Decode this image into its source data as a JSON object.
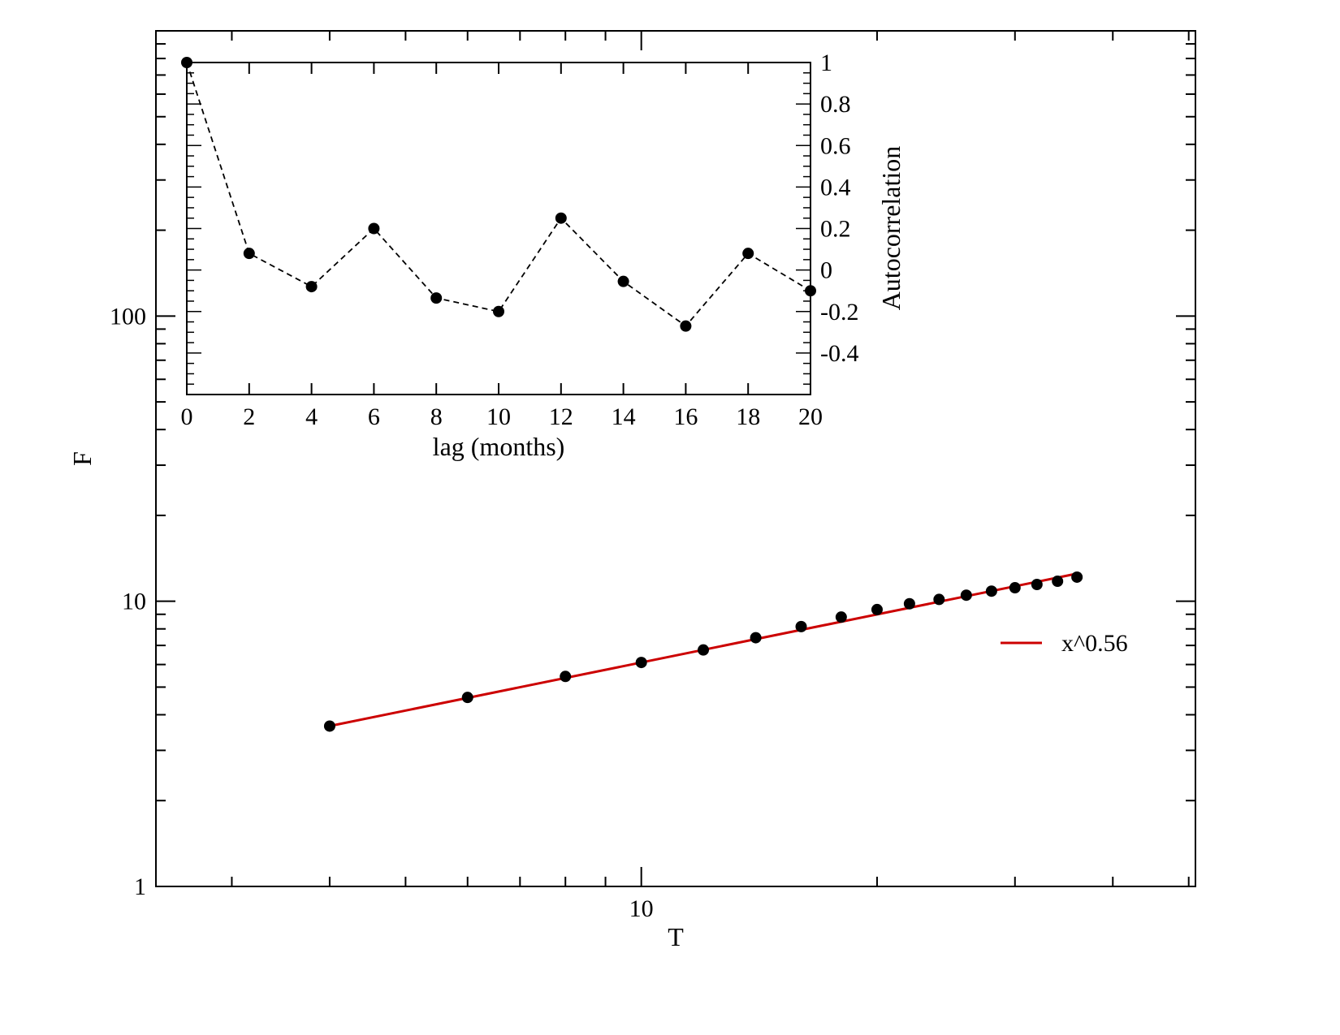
{
  "chart_data": [
    {
      "type": "scatter",
      "role": "main",
      "xlabel": "T",
      "ylabel": "F",
      "xscale": "log",
      "yscale": "log",
      "xlim": [
        2.4,
        51
      ],
      "ylim": [
        1,
        1000
      ],
      "x_major_ticks": [
        10
      ],
      "x_tick_labels": [
        "10"
      ],
      "y_major_ticks": [
        1,
        10,
        100
      ],
      "y_tick_labels": [
        "1",
        "10",
        "100"
      ],
      "grid": false,
      "legend_position": "right",
      "series": [
        {
          "kind": "points",
          "marker": "filled-circle",
          "color": "#000000",
          "x": [
            4,
            6,
            8,
            10,
            12,
            14,
            16,
            18,
            20,
            22,
            24,
            26,
            28,
            30,
            32,
            34,
            36
          ],
          "y": [
            3.65,
            4.6,
            5.45,
            6.1,
            6.75,
            7.45,
            8.15,
            8.8,
            9.35,
            9.8,
            10.15,
            10.5,
            10.85,
            11.15,
            11.45,
            11.75,
            12.15
          ]
        },
        {
          "kind": "fit-line",
          "name": "x^0.56",
          "color": "#cc0000",
          "exponent": 0.56,
          "coefficient": 1.68,
          "x_range": [
            4,
            36
          ]
        }
      ]
    },
    {
      "type": "line",
      "role": "inset",
      "xlabel": "lag (months)",
      "ylabel": "Autocorrelation",
      "xlim": [
        0,
        20
      ],
      "ylim": [
        -0.6,
        1
      ],
      "x_ticks": [
        0,
        2,
        4,
        6,
        8,
        10,
        12,
        14,
        16,
        18,
        20
      ],
      "x_tick_labels": [
        "0",
        "2",
        "4",
        "6",
        "8",
        "10",
        "12",
        "14",
        "16",
        "18",
        "20"
      ],
      "y_ticks": [
        -0.4,
        -0.2,
        0,
        0.2,
        0.4,
        0.6,
        0.8,
        1
      ],
      "y_tick_labels": [
        "-0.4",
        "-0.2",
        "0",
        "0.2",
        "0.4",
        "0.6",
        "0.8",
        "1"
      ],
      "y_axis_side": "right",
      "grid": false,
      "line_style": "dashed",
      "marker": "filled-circle",
      "color": "#000000",
      "x": [
        0,
        2,
        4,
        6,
        8,
        10,
        12,
        14,
        16,
        18,
        20
      ],
      "y": [
        1.0,
        0.08,
        -0.08,
        0.2,
        -0.135,
        -0.2,
        0.25,
        -0.055,
        -0.27,
        0.08,
        -0.1
      ]
    }
  ]
}
